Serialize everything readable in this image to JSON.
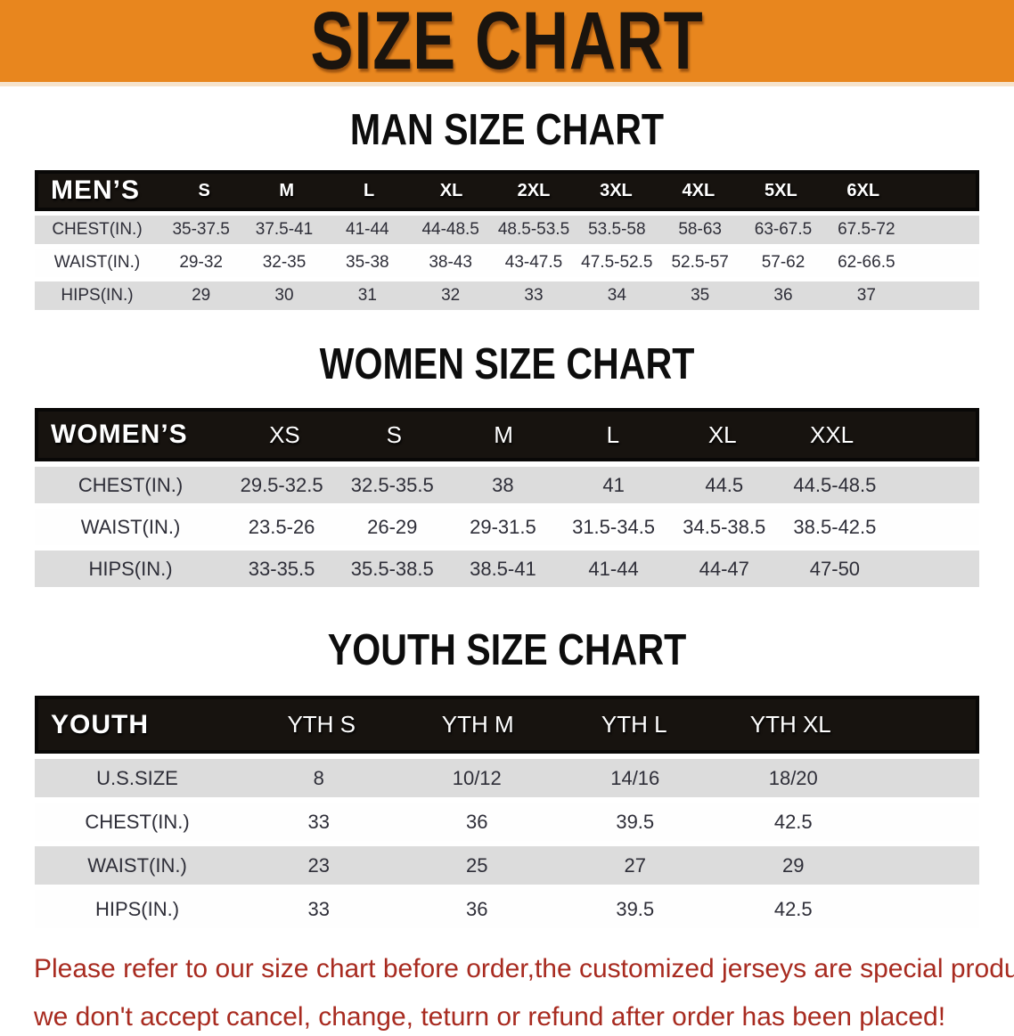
{
  "banner": {
    "title": "SIZE CHART"
  },
  "colors": {
    "banner_orange": "#E8861E",
    "header_band_black": "#17130F",
    "row_gray": "#DCDCDC",
    "data_text": "#2E2E38",
    "footer_red": "#A82B20"
  },
  "sections": [
    {
      "heading": "MAN SIZE CHART",
      "table_label": "MEN’S",
      "columns": [
        "S",
        "M",
        "L",
        "XL",
        "2XL",
        "3XL",
        "4XL",
        "5XL",
        "6XL"
      ],
      "rows": [
        {
          "label": "CHEST(IN.)",
          "values": [
            "35-37.5",
            "37.5-41",
            "41-44",
            "44-48.5",
            "48.5-53.5",
            "53.5-58",
            "58-63",
            "63-67.5",
            "67.5-72"
          ]
        },
        {
          "label": "WAIST(IN.)",
          "values": [
            "29-32",
            "32-35",
            "35-38",
            "38-43",
            "43-47.5",
            "47.5-52.5",
            "52.5-57",
            "57-62",
            "62-66.5"
          ]
        },
        {
          "label": "HIPS(IN.)",
          "values": [
            "29",
            "30",
            "31",
            "32",
            "33",
            "34",
            "35",
            "36",
            "37"
          ]
        }
      ]
    },
    {
      "heading": "WOMEN SIZE CHART",
      "table_label": "WOMEN’S",
      "columns": [
        "XS",
        "S",
        "M",
        "L",
        "XL",
        "XXL"
      ],
      "rows": [
        {
          "label": "CHEST(IN.)",
          "values": [
            "29.5-32.5",
            "32.5-35.5",
            "38",
            "41",
            "44.5",
            "44.5-48.5"
          ]
        },
        {
          "label": "WAIST(IN.)",
          "values": [
            "23.5-26",
            "26-29",
            "29-31.5",
            "31.5-34.5",
            "34.5-38.5",
            "38.5-42.5"
          ]
        },
        {
          "label": "HIPS(IN.)",
          "values": [
            "33-35.5",
            "35.5-38.5",
            "38.5-41",
            "41-44",
            "44-47",
            "47-50"
          ]
        }
      ]
    },
    {
      "heading": "YOUTH SIZE CHART",
      "table_label": "YOUTH",
      "columns": [
        "YTH S",
        "YTH M",
        "YTH L",
        "YTH XL"
      ],
      "rows": [
        {
          "label": "U.S.SIZE",
          "values": [
            "8",
            "10/12",
            "14/16",
            "18/20"
          ]
        },
        {
          "label": "CHEST(IN.)",
          "values": [
            "33",
            "36",
            "39.5",
            "42.5"
          ]
        },
        {
          "label": "WAIST(IN.)",
          "values": [
            "23",
            "25",
            "27",
            "29"
          ]
        },
        {
          "label": "HIPS(IN.)",
          "values": [
            "33",
            "36",
            "39.5",
            "42.5"
          ]
        }
      ]
    }
  ],
  "footer": {
    "line1": "Please refer to our size chart before order,the customized jerseys are special products,",
    "line2": "we don't accept cancel, change, teturn or refund after order has been placed!"
  }
}
